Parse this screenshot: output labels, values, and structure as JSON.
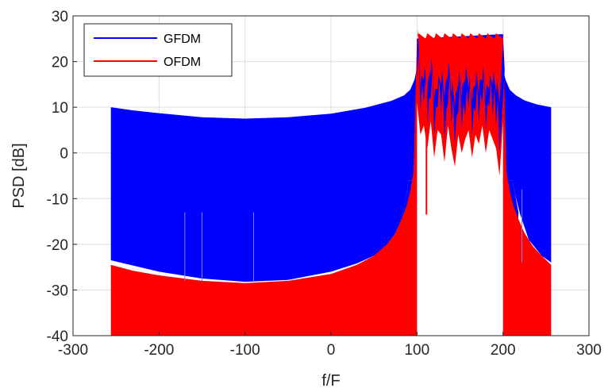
{
  "chart_data": {
    "type": "area",
    "title": "",
    "xlabel": "f/F",
    "ylabel": "PSD [dB]",
    "xlim": [
      -300,
      300
    ],
    "ylim": [
      -40,
      30
    ],
    "xticks": [
      -300,
      -200,
      -100,
      0,
      100,
      200,
      300
    ],
    "yticks": [
      -40,
      -30,
      -20,
      -10,
      0,
      10,
      20,
      30
    ],
    "grid": true,
    "legend_position": "top-left",
    "series": [
      {
        "name": "GFDM",
        "color": "#0000ff",
        "upper": {
          "x": [
            -256,
            -230,
            -200,
            -150,
            -100,
            -50,
            0,
            40,
            70,
            85,
            92,
            97,
            100,
            200,
            203,
            208,
            215,
            225,
            240,
            256
          ],
          "y": [
            10,
            9.3,
            8.7,
            7.8,
            7.5,
            7.8,
            8.6,
            9.9,
            11.4,
            12.6,
            13.8,
            16,
            18.5,
            18.5,
            16,
            13.8,
            12.6,
            11.5,
            10.6,
            10
          ]
        },
        "lower": {
          "x": [
            -256,
            -200,
            -150,
            -100,
            -50,
            0,
            30,
            50,
            65,
            75,
            83,
            88,
            90,
            211,
            214,
            220,
            230,
            245,
            256
          ],
          "y": [
            -23.5,
            -26,
            -27.5,
            -28.2,
            -27.8,
            -26,
            -24.2,
            -22.5,
            -20.2,
            -17.5,
            -13.5,
            -9,
            -6,
            -6,
            -9,
            -13.5,
            -19,
            -22.5,
            -24
          ]
        },
        "inband_low_sample": [
          100,
          104,
          108,
          112,
          116,
          120,
          124,
          128,
          132,
          136,
          140,
          144,
          148,
          152,
          156,
          160,
          164,
          168,
          172,
          176,
          180,
          184,
          188,
          192,
          196,
          200
        ],
        "inband_low_values": [
          16,
          9,
          11,
          6,
          12,
          4,
          10,
          9,
          3,
          11,
          6,
          2,
          9,
          5,
          8,
          10,
          4,
          9,
          7,
          11,
          5,
          10,
          8,
          6,
          0,
          12
        ]
      },
      {
        "name": "OFDM",
        "color": "#ff0000",
        "upper": {
          "x": [
            -256,
            -230,
            -200,
            -150,
            -100,
            -50,
            0,
            30,
            50,
            65,
            75,
            82,
            88,
            92,
            96,
            100,
            200,
            204,
            208,
            212,
            218,
            225,
            235,
            245,
            256
          ],
          "y": [
            -24.5,
            -25.8,
            -26.8,
            -28,
            -28.5,
            -28,
            -26.5,
            -24.5,
            -22.5,
            -20,
            -17.5,
            -14.5,
            -11.5,
            -8.5,
            -4,
            25,
            25,
            -4,
            -8.5,
            -11.5,
            -14.5,
            -17.5,
            -20.5,
            -22.5,
            -24.5
          ]
        },
        "lower_bound": -40,
        "notch": {
          "x": 111,
          "y": -13.5
        },
        "inband_low_sample": [
          100,
          104,
          108,
          112,
          116,
          120,
          124,
          128,
          132,
          136,
          140,
          144,
          148,
          152,
          156,
          160,
          164,
          168,
          172,
          176,
          180,
          184,
          188,
          192,
          196,
          200
        ],
        "inband_low_values": [
          24,
          14,
          16,
          13,
          18,
          11,
          14,
          15,
          12,
          17,
          13,
          10,
          15,
          12,
          16,
          14,
          11,
          15,
          13,
          16,
          12,
          14,
          15,
          13,
          11,
          24
        ]
      }
    ],
    "inband_top": {
      "x": [
        100,
        200
      ],
      "y": [
        25,
        26
      ]
    }
  }
}
